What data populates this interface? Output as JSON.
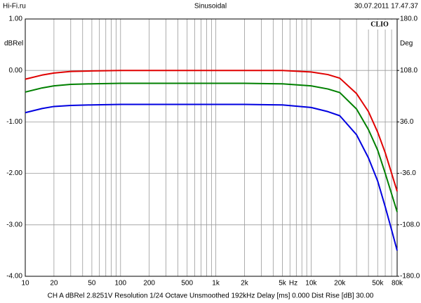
{
  "chart_data": {
    "type": "line",
    "title": "Sinusoidal",
    "source": "Hi-Fi.ru",
    "timestamp": "30.07.2011 17.47.37",
    "brand": "CLIO",
    "ylabel": "dBRel",
    "y2label": "Deg",
    "xunit": "Hz",
    "footer": "CH A   dBRel 2.8251V   Resolution 1/24 Octave   Unsmoothed   192kHz   Delay [ms] 0.000   Dist Rise [dB] 30.00",
    "log_x": true,
    "grid": true,
    "xlim": [
      10,
      80000
    ],
    "xticks": [
      10,
      20,
      50,
      100,
      200,
      500,
      {
        "value": 1000,
        "label": "1k"
      },
      {
        "value": 2000,
        "label": "2k"
      },
      {
        "value": 5000,
        "label": "5k"
      },
      {
        "value": 10000,
        "label": "10k"
      },
      {
        "value": 20000,
        "label": "20k"
      },
      {
        "value": 50000,
        "label": "50k"
      },
      {
        "value": 80000,
        "label": "80k"
      }
    ],
    "x_gridlines": [
      30,
      40,
      60,
      70,
      80,
      90,
      300,
      400,
      600,
      700,
      800,
      900,
      3000,
      4000,
      6000,
      7000,
      8000,
      9000,
      30000,
      40000,
      60000,
      70000
    ],
    "ylim": [
      -4,
      1
    ],
    "yticks": [
      {
        "value": 1,
        "label": "1.00"
      },
      {
        "value": 0,
        "label": "0.00"
      },
      {
        "value": -1,
        "label": "-1.00"
      },
      {
        "value": -2,
        "label": "-2.00"
      },
      {
        "value": -3,
        "label": "-3.00"
      },
      {
        "value": -4,
        "label": "-4.00"
      }
    ],
    "y2lim": [
      -180,
      180
    ],
    "y2ticks": [
      {
        "value": 180,
        "label": "180.0"
      },
      {
        "value": 108,
        "label": "108.0"
      },
      {
        "value": 36,
        "label": "36.0"
      },
      {
        "value": -36,
        "label": "-36.0"
      },
      {
        "value": -108,
        "label": "-108.0"
      },
      {
        "value": -180,
        "label": "-180.0"
      }
    ],
    "x": [
      10,
      15,
      20,
      30,
      50,
      100,
      200,
      500,
      1000,
      2000,
      5000,
      10000,
      15000,
      20000,
      30000,
      40000,
      50000,
      60000,
      70000,
      80000
    ],
    "series": [
      {
        "color": "#e00000",
        "values": [
          -0.17,
          -0.09,
          -0.05,
          -0.02,
          -0.01,
          0,
          0,
          0,
          0,
          0,
          0,
          -0.03,
          -0.08,
          -0.15,
          -0.45,
          -0.8,
          -1.2,
          -1.6,
          -2.0,
          -2.35
        ]
      },
      {
        "color": "#008000",
        "values": [
          -0.42,
          -0.34,
          -0.3,
          -0.27,
          -0.26,
          -0.25,
          -0.25,
          -0.25,
          -0.25,
          -0.25,
          -0.26,
          -0.3,
          -0.36,
          -0.43,
          -0.75,
          -1.15,
          -1.55,
          -2.0,
          -2.4,
          -2.75
        ]
      },
      {
        "color": "#0000e0",
        "values": [
          -0.82,
          -0.74,
          -0.7,
          -0.68,
          -0.67,
          -0.66,
          -0.66,
          -0.66,
          -0.66,
          -0.66,
          -0.67,
          -0.72,
          -0.8,
          -0.88,
          -1.25,
          -1.7,
          -2.15,
          -2.65,
          -3.1,
          -3.5
        ]
      }
    ]
  }
}
